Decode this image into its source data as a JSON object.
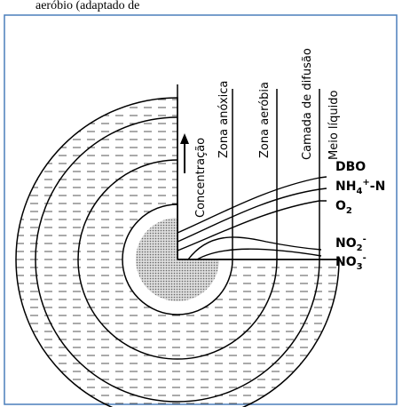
{
  "caption_fragment": "aeróbio (adaptado de",
  "axis_label": "Concentração",
  "zones": [
    "Zona anóxica",
    "Zona aeróbia",
    "Camada de difusão",
    "Meio líquido"
  ],
  "species": {
    "dbo": "DBO",
    "nh4": {
      "base": "NH",
      "sub": "4",
      "sup": "+",
      "rest": "-N"
    },
    "o2": {
      "base": "O",
      "sub": "2"
    },
    "no2": {
      "base": "NO",
      "sub": "2",
      "sup": "-"
    },
    "no3": {
      "base": "NO",
      "sub": "3",
      "sup": "-"
    }
  }
}
